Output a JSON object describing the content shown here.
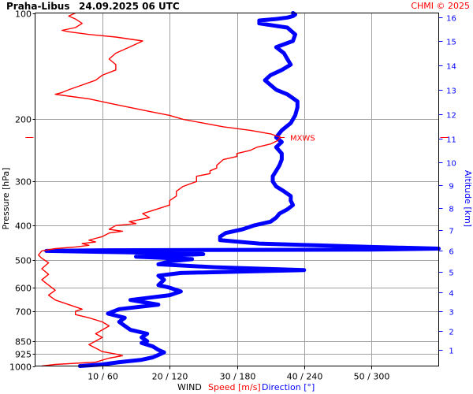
{
  "title": {
    "station": "Praha-Libus",
    "datetime": "24.09.2025 06 UTC",
    "copyright": "CHMI © 2025"
  },
  "colors": {
    "speed": "#ff0000",
    "direction": "#0000ff",
    "grid": "#a0a0a0",
    "frame": "#000000"
  },
  "chart_data": {
    "type": "line",
    "title": "Praha-Libus   24.09.2025 06 UTC",
    "y_axis": {
      "label": "Pressure [hPa]",
      "scale": "log",
      "range": [
        1000,
        100
      ],
      "ticks": [
        100,
        200,
        300,
        400,
        500,
        600,
        700,
        850,
        925,
        1000
      ],
      "tick_labels": [
        "100",
        "200",
        "300",
        "400",
        "500",
        "600",
        "700",
        "850",
        "925",
        "1000"
      ]
    },
    "y2_axis": {
      "label": "Altitude [km]",
      "ticks": [
        {
          "km": 1,
          "p": 900
        },
        {
          "km": 2,
          "p": 795
        },
        {
          "km": 3,
          "p": 700
        },
        {
          "km": 4,
          "p": 617
        },
        {
          "km": 5,
          "p": 541
        },
        {
          "km": 6,
          "p": 472
        },
        {
          "km": 7,
          "p": 411
        },
        {
          "km": 8,
          "p": 357
        },
        {
          "km": 9,
          "p": 308
        },
        {
          "km": 10,
          "p": 265
        },
        {
          "km": 11,
          "p": 227
        },
        {
          "km": 12,
          "p": 194
        },
        {
          "km": 13,
          "p": 165
        },
        {
          "km": 14,
          "p": 141
        },
        {
          "km": 15,
          "p": 120
        },
        {
          "km": 16,
          "p": 103
        }
      ]
    },
    "x_axis": {
      "label": "WIND",
      "speed_label": "Speed [m/s]",
      "direction_label": "Direction [°]",
      "ticks": [
        {
          "speed": 10,
          "dir": 60,
          "label": "10 / 60"
        },
        {
          "speed": 20,
          "dir": 120,
          "label": "20 / 120"
        },
        {
          "speed": 30,
          "dir": 180,
          "label": "30 / 180"
        },
        {
          "speed": 40,
          "dir": 240,
          "label": "40 / 240"
        },
        {
          "speed": 50,
          "dir": 300,
          "label": "50 / 300"
        }
      ],
      "speed_range": [
        0,
        60
      ],
      "dir_range": [
        0,
        360
      ]
    },
    "mxws": {
      "label": "MXWS",
      "p": 225,
      "speed": 36.5
    },
    "series": [
      {
        "name": "Speed [m/s]",
        "units": "m/s",
        "points": [
          [
            1000,
            1
          ],
          [
            990,
            3
          ],
          [
            975,
            9
          ],
          [
            950,
            11
          ],
          [
            935,
            13
          ],
          [
            925,
            12
          ],
          [
            910,
            10
          ],
          [
            890,
            9
          ],
          [
            870,
            8
          ],
          [
            850,
            9
          ],
          [
            830,
            10
          ],
          [
            810,
            9
          ],
          [
            790,
            10
          ],
          [
            770,
            11
          ],
          [
            750,
            10
          ],
          [
            730,
            8
          ],
          [
            715,
            6
          ],
          [
            700,
            6
          ],
          [
            690,
            7
          ],
          [
            670,
            5
          ],
          [
            650,
            3
          ],
          [
            630,
            2
          ],
          [
            610,
            3
          ],
          [
            590,
            2
          ],
          [
            570,
            1
          ],
          [
            550,
            2
          ],
          [
            530,
            1
          ],
          [
            510,
            2
          ],
          [
            495,
            1
          ],
          [
            485,
            0.5
          ],
          [
            472,
            1
          ],
          [
            465,
            3
          ],
          [
            460,
            6
          ],
          [
            455,
            8
          ],
          [
            450,
            7
          ],
          [
            445,
            9
          ],
          [
            440,
            8
          ],
          [
            435,
            9
          ],
          [
            430,
            10
          ],
          [
            420,
            11
          ],
          [
            415,
            13
          ],
          [
            410,
            11
          ],
          [
            400,
            12
          ],
          [
            395,
            15
          ],
          [
            390,
            14
          ],
          [
            380,
            17
          ],
          [
            370,
            16
          ],
          [
            360,
            18
          ],
          [
            350,
            20
          ],
          [
            340,
            20
          ],
          [
            330,
            21
          ],
          [
            320,
            21
          ],
          [
            310,
            22
          ],
          [
            300,
            24
          ],
          [
            290,
            24
          ],
          [
            285,
            26
          ],
          [
            280,
            26
          ],
          [
            275,
            27
          ],
          [
            270,
            27
          ],
          [
            260,
            28
          ],
          [
            255,
            30
          ],
          [
            250,
            30
          ],
          [
            245,
            32
          ],
          [
            240,
            33
          ],
          [
            235,
            35
          ],
          [
            230,
            36
          ],
          [
            225,
            36.5
          ],
          [
            220,
            35
          ],
          [
            215,
            32
          ],
          [
            210,
            28
          ],
          [
            205,
            25
          ],
          [
            200,
            22
          ],
          [
            195,
            20
          ],
          [
            190,
            17
          ],
          [
            185,
            14
          ],
          [
            180,
            11
          ],
          [
            175,
            8
          ],
          [
            172,
            5
          ],
          [
            170,
            3
          ],
          [
            168,
            4
          ],
          [
            165,
            5
          ],
          [
            160,
            7
          ],
          [
            155,
            9
          ],
          [
            150,
            10
          ],
          [
            145,
            12
          ],
          [
            140,
            12
          ],
          [
            135,
            11
          ],
          [
            130,
            12
          ],
          [
            125,
            14
          ],
          [
            120,
            16
          ],
          [
            117,
            12
          ],
          [
            115,
            8
          ],
          [
            113,
            5
          ],
          [
            112,
            4
          ],
          [
            110,
            6
          ],
          [
            107,
            7
          ],
          [
            104,
            6
          ],
          [
            102,
            5
          ],
          [
            100,
            6
          ]
        ]
      },
      {
        "name": "Direction [°]",
        "units": "deg",
        "points": [
          [
            1000,
            40
          ],
          [
            990,
            60
          ],
          [
            975,
            75
          ],
          [
            960,
            95
          ],
          [
            945,
            105
          ],
          [
            930,
            110
          ],
          [
            915,
            115
          ],
          [
            900,
            110
          ],
          [
            880,
            105
          ],
          [
            860,
            95
          ],
          [
            850,
            100
          ],
          [
            830,
            95
          ],
          [
            810,
            100
          ],
          [
            790,
            85
          ],
          [
            770,
            80
          ],
          [
            750,
            75
          ],
          [
            730,
            80
          ],
          [
            710,
            65
          ],
          [
            690,
            75
          ],
          [
            670,
            110
          ],
          [
            650,
            85
          ],
          [
            630,
            120
          ],
          [
            615,
            130
          ],
          [
            600,
            120
          ],
          [
            590,
            110
          ],
          [
            570,
            115
          ],
          [
            555,
            110
          ],
          [
            545,
            130
          ],
          [
            535,
            240
          ],
          [
            525,
            160
          ],
          [
            515,
            110
          ],
          [
            505,
            120
          ],
          [
            498,
            140
          ],
          [
            490,
            90
          ],
          [
            482,
            150
          ],
          [
            476,
            80
          ],
          [
            472,
            10
          ],
          [
            470,
            60
          ],
          [
            468,
            300
          ],
          [
            465,
            360
          ],
          [
            460,
            300
          ],
          [
            455,
            250
          ],
          [
            450,
            200
          ],
          [
            440,
            165
          ],
          [
            430,
            165
          ],
          [
            420,
            170
          ],
          [
            410,
            185
          ],
          [
            400,
            195
          ],
          [
            390,
            210
          ],
          [
            380,
            215
          ],
          [
            370,
            218
          ],
          [
            360,
            225
          ],
          [
            350,
            230
          ],
          [
            340,
            228
          ],
          [
            330,
            228
          ],
          [
            320,
            222
          ],
          [
            310,
            215
          ],
          [
            300,
            212
          ],
          [
            290,
            212
          ],
          [
            280,
            215
          ],
          [
            270,
            218
          ],
          [
            260,
            220
          ],
          [
            250,
            220
          ],
          [
            240,
            215
          ],
          [
            232,
            220
          ],
          [
            225,
            215
          ],
          [
            215,
            220
          ],
          [
            205,
            228
          ],
          [
            195,
            232
          ],
          [
            185,
            234
          ],
          [
            178,
            234
          ],
          [
            170,
            225
          ],
          [
            165,
            215
          ],
          [
            160,
            210
          ],
          [
            155,
            205
          ],
          [
            150,
            210
          ],
          [
            145,
            220
          ],
          [
            140,
            228
          ],
          [
            135,
            225
          ],
          [
            130,
            222
          ],
          [
            125,
            215
          ],
          [
            120,
            230
          ],
          [
            115,
            232
          ],
          [
            110,
            225
          ],
          [
            107,
            200
          ],
          [
            105,
            200
          ],
          [
            104,
            215
          ],
          [
            103,
            225
          ],
          [
            102,
            230
          ],
          [
            101,
            232
          ],
          [
            100,
            230
          ]
        ]
      }
    ]
  }
}
